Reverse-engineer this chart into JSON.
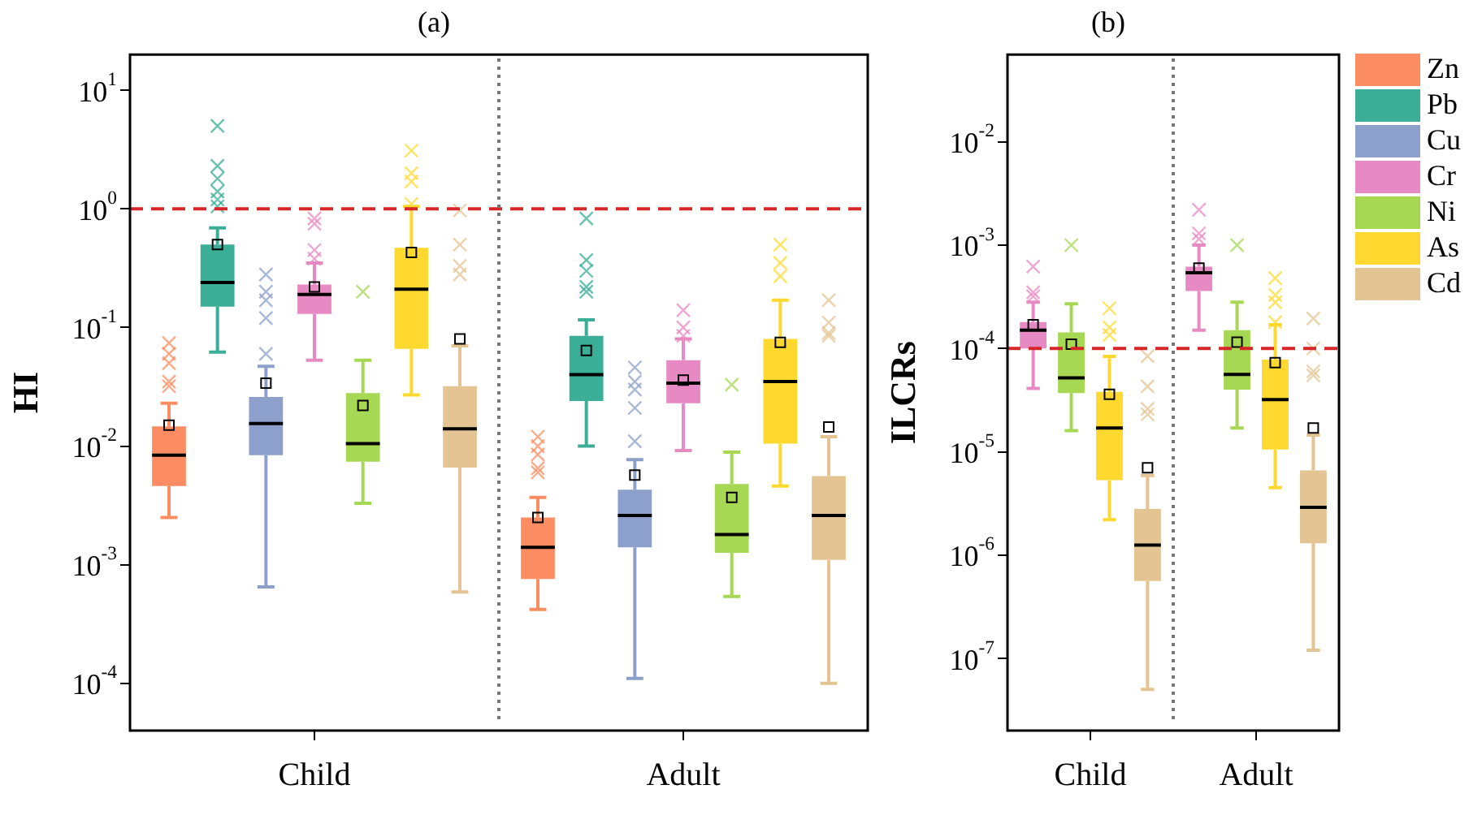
{
  "chart_data": [
    {
      "type": "box",
      "title": "(a)",
      "ylabel": "HI",
      "categories": [
        "Child",
        "Adult"
      ],
      "log": "y",
      "ylim": [
        4e-05,
        20
      ],
      "yticks": [
        {
          "value": 10,
          "label": "10$^{1}$"
        },
        {
          "value": 1,
          "label": "10$^{0}$"
        },
        {
          "value": 0.1,
          "label": "10$^{-1}$"
        },
        {
          "value": 0.01,
          "label": "10$^{-2}$"
        },
        {
          "value": 0.001,
          "label": "10$^{-3}$"
        },
        {
          "value": 0.0001,
          "label": "10$^{-4}$"
        }
      ],
      "ref_lines": [
        {
          "axis": "y",
          "value": 1,
          "color": "#d62728",
          "line_style": "dashed"
        }
      ],
      "series": [
        {
          "color": "#fc8d62",
          "boxes": [
            {
              "low": 0.0025,
              "q1": 0.0046,
              "median": 0.0084,
              "q3": 0.0147,
              "high": 0.023,
              "mean": 0.015,
              "outliers": [
                0.074,
                0.06,
                0.05,
                0.035,
                0.032
              ]
            },
            {
              "low": 0.00042,
              "q1": 0.00076,
              "median": 0.0014,
              "q3": 0.0025,
              "high": 0.0037,
              "mean": 0.0025,
              "outliers": [
                0.012,
                0.01,
                0.0085,
                0.0065,
                0.006
              ]
            }
          ]
        },
        {
          "color": "#3aae96",
          "boxes": [
            {
              "low": 0.062,
              "q1": 0.15,
              "median": 0.24,
              "q3": 0.5,
              "high": 0.69,
              "mean": 0.5,
              "outliers": [
                5,
                2.3,
                1.8,
                1.4,
                1.2,
                1.05
              ]
            },
            {
              "low": 0.01,
              "q1": 0.024,
              "median": 0.04,
              "q3": 0.085,
              "high": 0.116,
              "mean": 0.064,
              "outliers": [
                0.83,
                0.37,
                0.3,
                0.22,
                0.2
              ]
            }
          ]
        },
        {
          "color": "#8da0cb",
          "boxes": [
            {
              "low": 0.00065,
              "q1": 0.0084,
              "median": 0.0155,
              "q3": 0.026,
              "high": 0.047,
              "mean": 0.034,
              "outliers": [
                0.28,
                0.2,
                0.17,
                0.12,
                0.06
              ]
            },
            {
              "low": 0.00011,
              "q1": 0.0014,
              "median": 0.0026,
              "q3": 0.0043,
              "high": 0.0077,
              "mean": 0.0057,
              "outliers": [
                0.046,
                0.035,
                0.03,
                0.021,
                0.011
              ]
            }
          ]
        },
        {
          "color": "#e78ac3",
          "boxes": [
            {
              "low": 0.053,
              "q1": 0.13,
              "median": 0.19,
              "q3": 0.23,
              "high": 0.35,
              "mean": 0.22,
              "outliers": [
                0.83,
                0.75,
                0.45,
                0.38
              ]
            },
            {
              "low": 0.0092,
              "q1": 0.023,
              "median": 0.034,
              "q3": 0.053,
              "high": 0.08,
              "mean": 0.036,
              "outliers": [
                0.14,
                0.1,
                0.085
              ]
            }
          ]
        },
        {
          "color": "#a6d854",
          "boxes": [
            {
              "low": 0.0033,
              "q1": 0.0074,
              "median": 0.0105,
              "q3": 0.028,
              "high": 0.053,
              "mean": 0.022,
              "outliers": [
                0.2
              ]
            },
            {
              "low": 0.00054,
              "q1": 0.00126,
              "median": 0.0018,
              "q3": 0.0048,
              "high": 0.0089,
              "mean": 0.0037,
              "outliers": [
                0.033
              ]
            }
          ]
        },
        {
          "color": "#ffd92f",
          "boxes": [
            {
              "low": 0.027,
              "q1": 0.066,
              "median": 0.21,
              "q3": 0.47,
              "high": 1.05,
              "mean": 0.43,
              "outliers": [
                3.1,
                2,
                1.7,
                1.1
              ]
            },
            {
              "low": 0.0046,
              "q1": 0.0105,
              "median": 0.035,
              "q3": 0.08,
              "high": 0.17,
              "mean": 0.075,
              "outliers": [
                0.5,
                0.35,
                0.27
              ]
            }
          ]
        },
        {
          "color": "#e5c494",
          "boxes": [
            {
              "low": 0.00059,
              "q1": 0.0066,
              "median": 0.014,
              "q3": 0.032,
              "high": 0.07,
              "mean": 0.08,
              "outliers": [
                0.97,
                0.5,
                0.33,
                0.28
              ]
            },
            {
              "low": 0.0001,
              "q1": 0.0011,
              "median": 0.0026,
              "q3": 0.0056,
              "high": 0.012,
              "mean": 0.0145,
              "outliers": [
                0.17,
                0.11,
                0.09,
                0.085
              ]
            }
          ]
        }
      ]
    },
    {
      "type": "box",
      "title": "(b)",
      "ylabel": "ILCRs",
      "categories": [
        "Child",
        "Adult"
      ],
      "log": "y",
      "ylim": [
        2e-08,
        0.07
      ],
      "legend": "right",
      "yticks": [
        {
          "value": 0.01,
          "label": "10$^{-2}$"
        },
        {
          "value": 0.001,
          "label": "10$^{-3}$"
        },
        {
          "value": 0.0001,
          "label": "10$^{-4}$"
        },
        {
          "value": 1e-05,
          "label": "10$^{-5}$"
        },
        {
          "value": 1e-06,
          "label": "10$^{-6}$"
        },
        {
          "value": 1e-07,
          "label": "10$^{-7}$"
        }
      ],
      "ref_lines": [
        {
          "axis": "y",
          "value": 0.0001,
          "color": "#d62728",
          "line_style": "dashed"
        }
      ],
      "series": [
        {
          "name": "Zn",
          "color": "#fc8d62",
          "boxes": [
            null,
            null
          ]
        },
        {
          "name": "Pb",
          "color": "#3aae96",
          "boxes": [
            null,
            null
          ]
        },
        {
          "name": "Cu",
          "color": "#8da0cb",
          "boxes": [
            null,
            null
          ]
        },
        {
          "name": "Cr",
          "color": "#e78ac3",
          "boxes": [
            {
              "low": 4.1e-05,
              "q1": 0.0001,
              "median": 0.00015,
              "q3": 0.00018,
              "high": 0.00028,
              "mean": 0.00017,
              "outliers": [
                0.00062,
                0.00035,
                0.00032
              ]
            },
            {
              "low": 0.00015,
              "q1": 0.00036,
              "median": 0.00054,
              "q3": 0.00062,
              "high": 0.001,
              "mean": 0.0006,
              "outliers": [
                0.0022,
                0.0013,
                0.00115
              ]
            }
          ]
        },
        {
          "name": "Ni",
          "color": "#a6d854",
          "boxes": [
            {
              "low": 1.6e-05,
              "q1": 3.7e-05,
              "median": 5.2e-05,
              "q3": 0.000143,
              "high": 0.00027,
              "mean": 0.00011,
              "outliers": [
                0.001
              ]
            },
            {
              "low": 1.7e-05,
              "q1": 4e-05,
              "median": 5.6e-05,
              "q3": 0.00015,
              "high": 0.00028,
              "mean": 0.000115,
              "outliers": [
                0.001
              ]
            }
          ]
        },
        {
          "name": "As",
          "color": "#ffd92f",
          "boxes": [
            {
              "low": 2.2e-06,
              "q1": 5.3e-06,
              "median": 1.7e-05,
              "q3": 3.8e-05,
              "high": 8.4e-05,
              "mean": 3.6e-05,
              "outliers": [
                0.000245,
                0.00016,
                0.000135
              ]
            },
            {
              "low": 4.5e-06,
              "q1": 1.05e-05,
              "median": 3.2e-05,
              "q3": 7.8e-05,
              "high": 0.00017,
              "mean": 7.3e-05,
              "outliers": [
                0.00048,
                0.00033,
                0.00028,
                0.00018
              ]
            }
          ]
        },
        {
          "name": "Cd",
          "color": "#e5c494",
          "boxes": [
            {
              "low": 5e-08,
              "q1": 5.6e-07,
              "median": 1.25e-06,
              "q3": 2.8e-06,
              "high": 5.9e-06,
              "mean": 7e-06,
              "outliers": [
                8.4e-05,
                4.3e-05,
                2.6e-05,
                2.3e-05
              ]
            },
            {
              "low": 1.2e-07,
              "q1": 1.3e-06,
              "median": 2.9e-06,
              "q3": 6.6e-06,
              "high": 1.45e-05,
              "mean": 1.7e-05,
              "outliers": [
                0.000195,
                0.0001,
                6e-05,
                5.5e-05
              ]
            }
          ]
        }
      ]
    }
  ]
}
